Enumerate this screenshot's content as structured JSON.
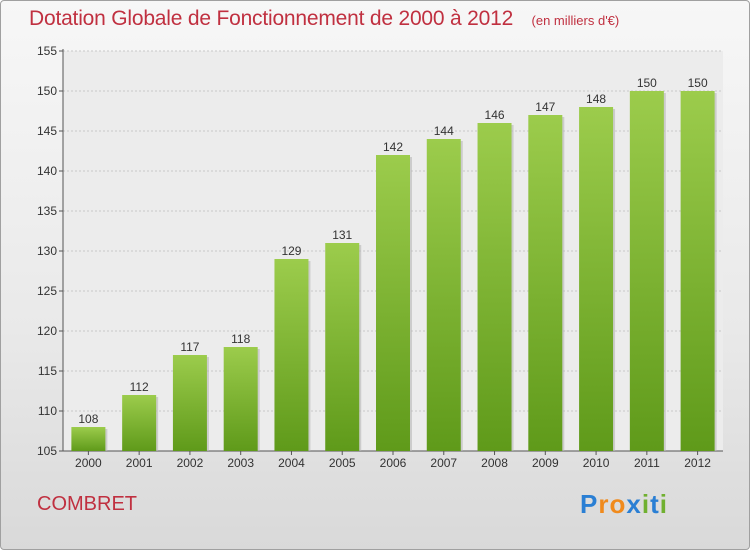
{
  "chart_data": {
    "type": "bar",
    "title": "Dotation Globale de Fonctionnement de 2000 à 2012",
    "subtitle": "(en milliers d'€)",
    "categories": [
      "2000",
      "2001",
      "2002",
      "2003",
      "2004",
      "2005",
      "2006",
      "2007",
      "2008",
      "2009",
      "2010",
      "2011",
      "2012"
    ],
    "values": [
      108,
      112,
      117,
      118,
      129,
      131,
      142,
      144,
      146,
      147,
      148,
      150,
      150
    ],
    "ylim": [
      105,
      155
    ],
    "yticks": [
      105,
      110,
      115,
      120,
      125,
      130,
      135,
      140,
      145,
      150,
      155
    ],
    "xlabel": "",
    "ylabel": "",
    "grid": true
  },
  "commune": "COMBRET",
  "logo": {
    "text": "Proxiti",
    "letters": [
      "P",
      "r",
      "o",
      "x",
      "i",
      "t",
      "i"
    ]
  },
  "colors": {
    "title": "#c03040",
    "bar_top": "#9ccc4c",
    "bar_bottom": "#5f9a1a",
    "logo": [
      "#2a7fd4",
      "#f08a1c",
      "#f08a1c",
      "#2a7fd4",
      "#70b030",
      "#2a7fd4",
      "#70b030"
    ]
  }
}
